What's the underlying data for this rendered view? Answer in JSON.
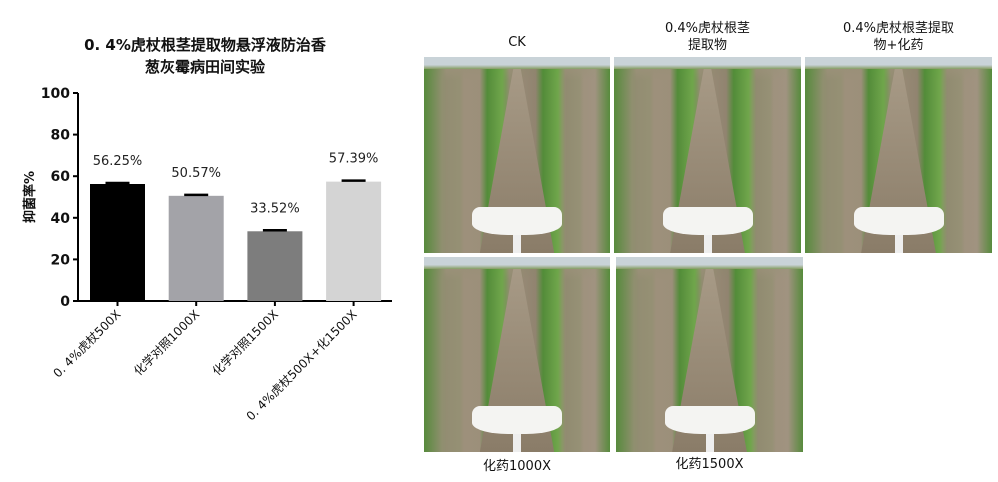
{
  "chart_data": {
    "type": "bar",
    "title": "0.4%虎杖根茎提取物悬浮液防治香葱灰霉病田间实验",
    "title_lines": [
      "0. 4%虎杖根茎提取物悬浮液防治香",
      "葱灰霉病田间实验"
    ],
    "ylabel": "抑菌率%",
    "xlabel": "",
    "ylim": [
      0,
      100
    ],
    "yticks": [
      0,
      20,
      40,
      60,
      80,
      100
    ],
    "categories": [
      "0. 4%虎杖500X",
      "化学对照1000X",
      "化学对照1500X",
      "0. 4%虎杖500X+化1500X"
    ],
    "values": [
      56.25,
      50.57,
      33.52,
      57.39
    ],
    "data_labels": [
      "56.25%",
      "50.57%",
      "33.52%",
      "57.39%"
    ],
    "colors": [
      "#000000",
      "#a3a3a8",
      "#7d7d7d",
      "#d4d4d4"
    ],
    "grid": false
  },
  "photos": [
    {
      "label": "CK"
    },
    {
      "label": "0.4%虎杖根茎提取物",
      "lines": [
        "0.4%虎杖根茎",
        "提取物"
      ]
    },
    {
      "label": "0.4%虎杖根茎提取物+化药",
      "lines": [
        "0.4%虎杖根茎提取",
        "物+化药"
      ]
    },
    {
      "label": "化药1000X"
    },
    {
      "label": "化药1500X"
    }
  ]
}
